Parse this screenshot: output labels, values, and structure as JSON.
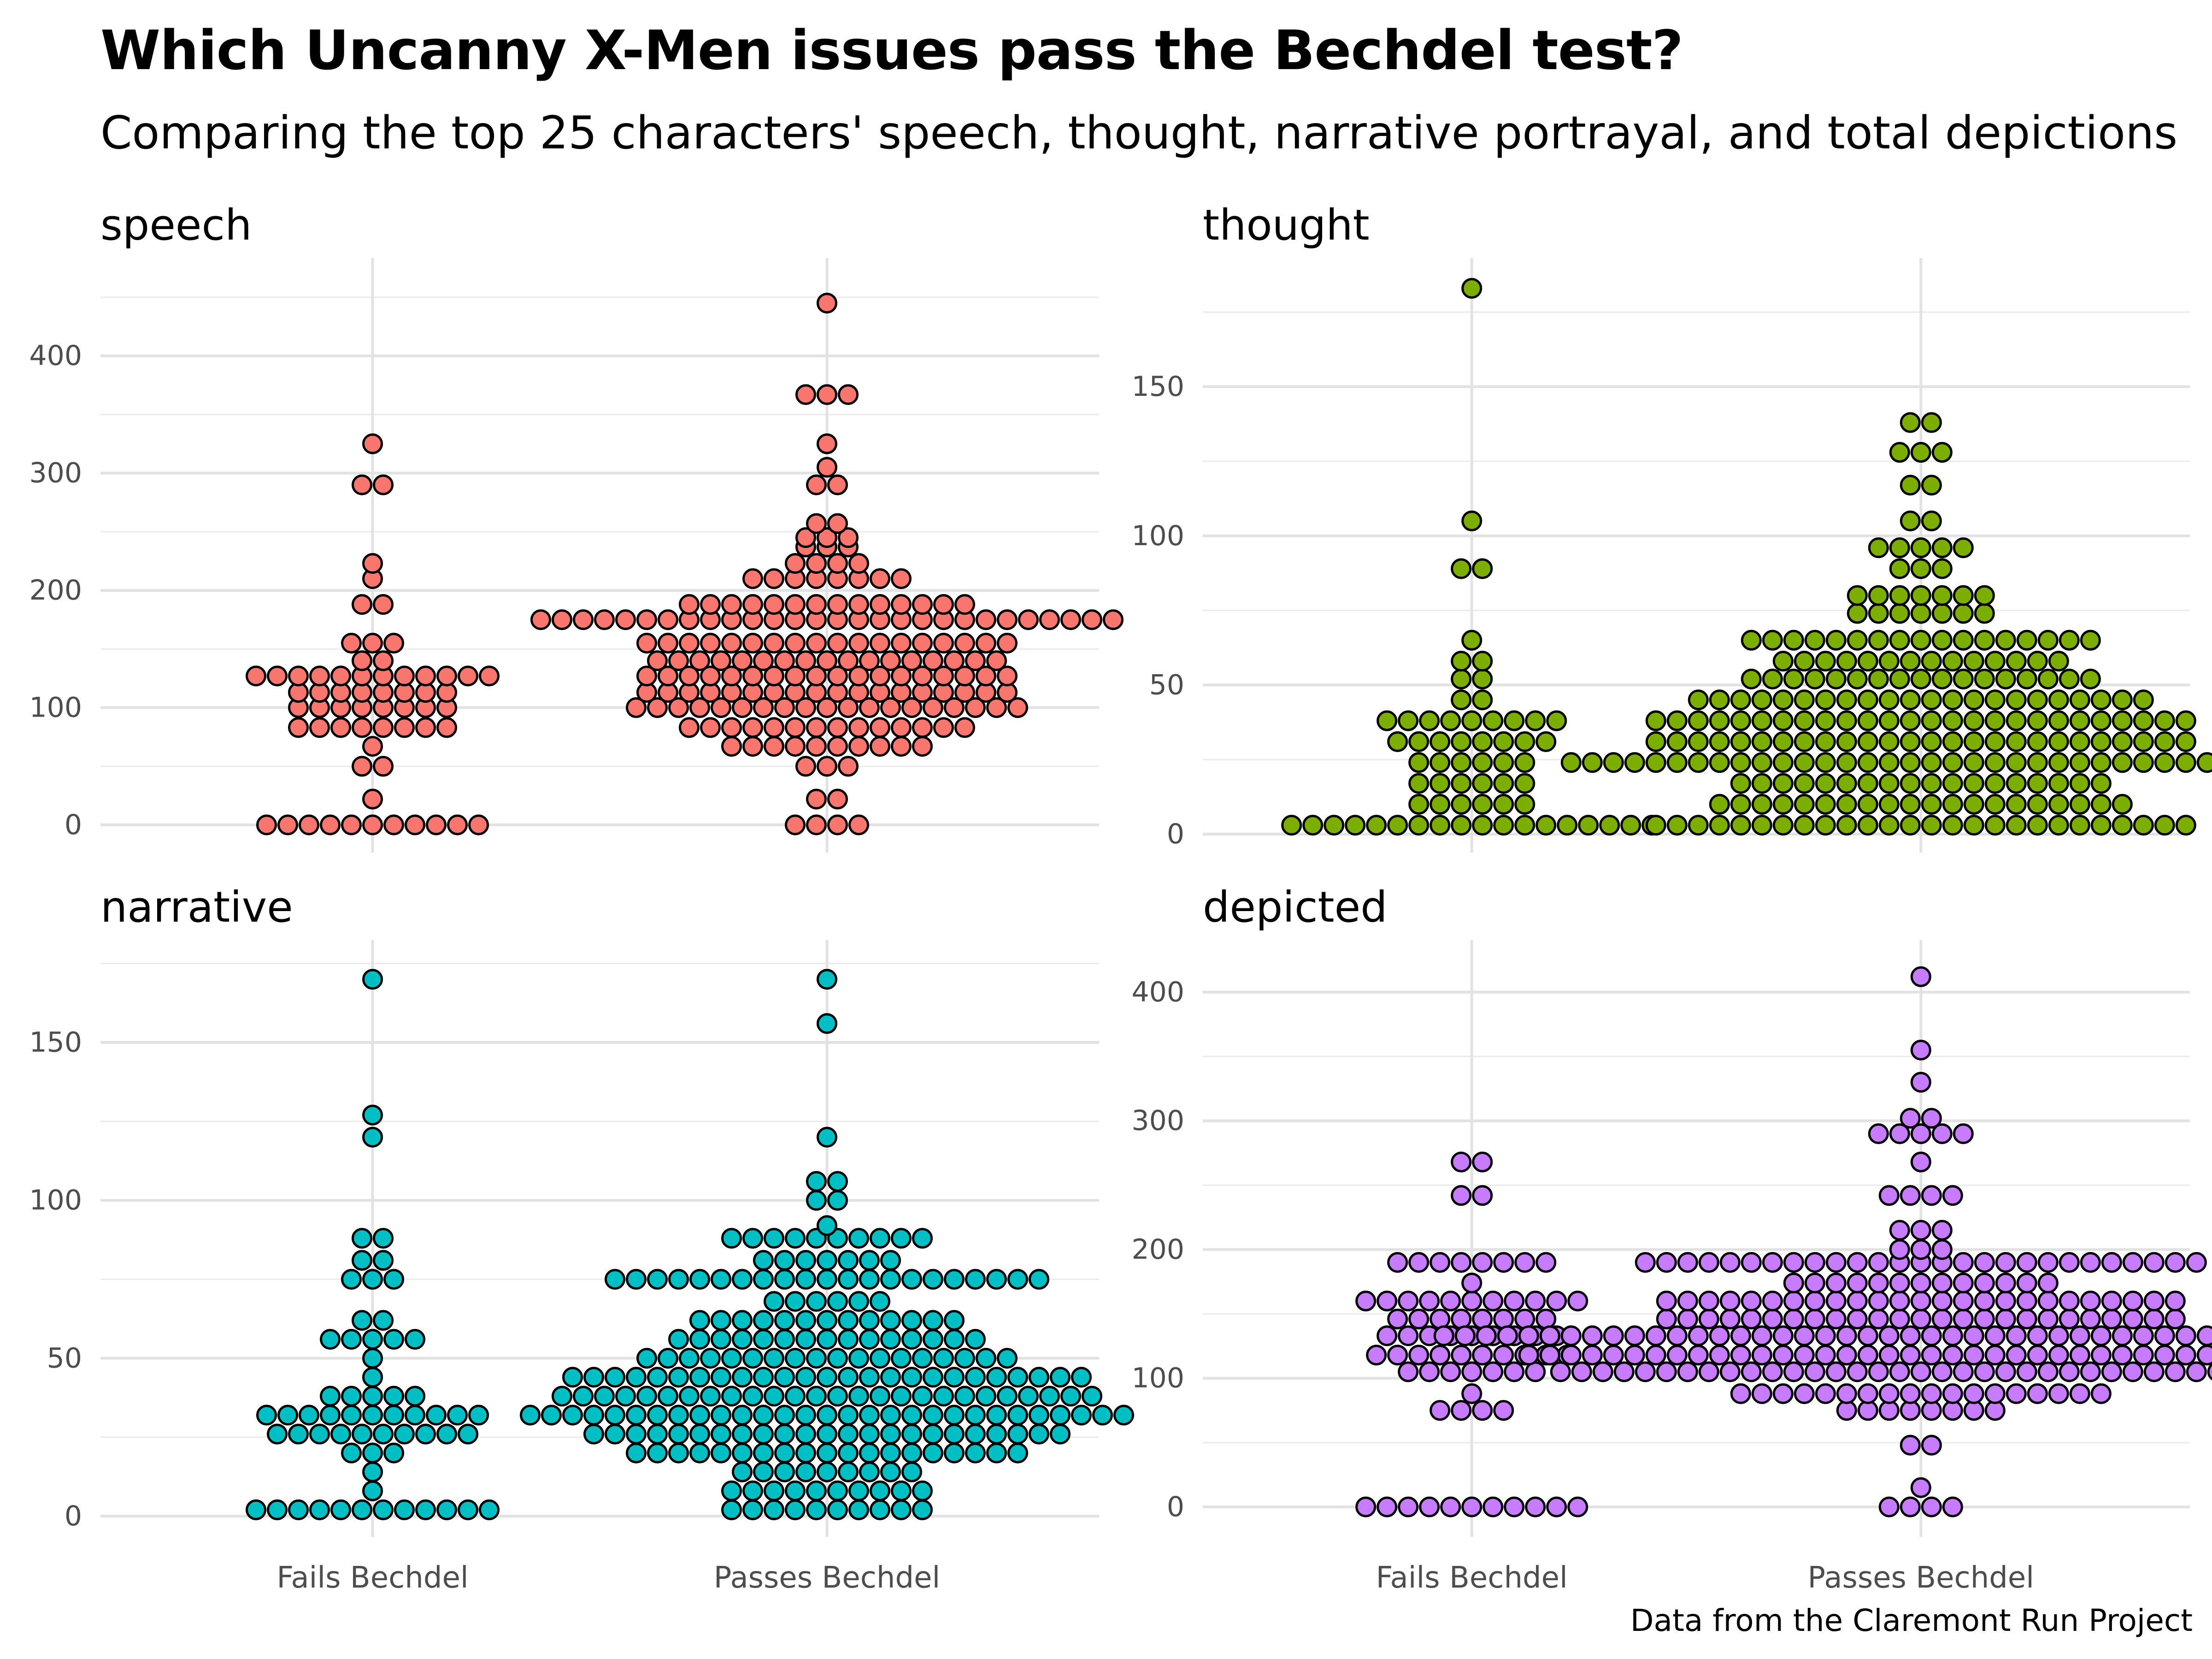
{
  "title": "Which Uncanny X-Men issues pass the Bechdel test?",
  "subtitle": "Comparing the top 25 characters' speech, thought, narrative portrayal, and total depictions",
  "caption": "Data from the Claremont Run Project",
  "chart_data": {
    "type": "scatter",
    "subtype": "beeswarm",
    "grid": true,
    "categories": [
      "Fails Bechdel",
      "Passes Bechdel"
    ],
    "panels": [
      {
        "name": "speech",
        "color": "#F8766D",
        "ylim": [
          0,
          450
        ],
        "yticks": [
          0,
          100,
          200,
          300,
          400
        ],
        "fails": [
          0,
          0,
          0,
          0,
          0,
          0,
          0,
          0,
          0,
          0,
          0,
          22,
          50,
          50,
          67,
          83,
          83,
          83,
          83,
          83,
          83,
          83,
          83,
          100,
          100,
          100,
          100,
          100,
          100,
          100,
          100,
          113,
          113,
          113,
          113,
          113,
          113,
          113,
          113,
          127,
          127,
          127,
          127,
          127,
          127,
          127,
          127,
          127,
          127,
          127,
          127,
          140,
          140,
          155,
          155,
          155,
          188,
          188,
          210,
          223,
          290,
          290,
          325
        ],
        "passes": [
          0,
          0,
          0,
          0,
          22,
          22,
          50,
          50,
          50,
          67,
          67,
          67,
          67,
          67,
          67,
          67,
          67,
          67,
          67,
          83,
          83,
          83,
          83,
          83,
          83,
          83,
          83,
          83,
          83,
          83,
          83,
          83,
          83,
          100,
          100,
          100,
          100,
          100,
          100,
          100,
          100,
          100,
          100,
          100,
          100,
          100,
          100,
          100,
          100,
          100,
          100,
          100,
          113,
          113,
          113,
          113,
          113,
          113,
          113,
          113,
          113,
          113,
          113,
          113,
          113,
          113,
          113,
          113,
          113,
          113,
          127,
          127,
          127,
          127,
          127,
          127,
          127,
          127,
          127,
          127,
          127,
          127,
          127,
          127,
          127,
          127,
          127,
          127,
          140,
          140,
          140,
          140,
          140,
          140,
          140,
          140,
          140,
          140,
          140,
          140,
          140,
          140,
          140,
          140,
          140,
          155,
          155,
          155,
          155,
          155,
          155,
          155,
          155,
          155,
          155,
          155,
          155,
          155,
          155,
          155,
          155,
          155,
          155,
          175,
          175,
          175,
          175,
          175,
          175,
          175,
          175,
          175,
          175,
          175,
          175,
          175,
          175,
          175,
          175,
          175,
          175,
          175,
          175,
          175,
          175,
          175,
          175,
          175,
          175,
          175,
          175,
          188,
          188,
          188,
          188,
          188,
          188,
          188,
          188,
          188,
          188,
          188,
          188,
          188,
          188,
          210,
          210,
          210,
          210,
          210,
          210,
          210,
          210,
          223,
          223,
          223,
          223,
          237,
          237,
          237,
          245,
          245,
          245,
          257,
          257,
          290,
          290,
          305,
          325,
          367,
          367,
          367,
          445
        ]
      },
      {
        "name": "thought",
        "color": "#7CAE00",
        "ylim": [
          0,
          180
        ],
        "yticks": [
          0,
          50,
          100,
          150
        ],
        "fails": [
          3,
          3,
          3,
          3,
          3,
          3,
          3,
          3,
          3,
          3,
          3,
          3,
          3,
          3,
          3,
          3,
          3,
          3,
          10,
          10,
          10,
          10,
          10,
          10,
          17,
          17,
          17,
          17,
          17,
          17,
          24,
          24,
          24,
          24,
          24,
          24,
          31,
          31,
          31,
          31,
          31,
          31,
          31,
          31,
          38,
          38,
          38,
          38,
          38,
          38,
          38,
          38,
          38,
          45,
          45,
          52,
          52,
          58,
          58,
          65,
          89,
          89,
          105,
          183
        ],
        "passes": [
          3,
          3,
          3,
          3,
          3,
          3,
          3,
          3,
          3,
          3,
          3,
          3,
          3,
          3,
          3,
          3,
          3,
          3,
          3,
          3,
          3,
          3,
          3,
          3,
          3,
          3,
          10,
          10,
          10,
          10,
          10,
          10,
          10,
          10,
          10,
          10,
          10,
          10,
          10,
          10,
          10,
          10,
          10,
          10,
          10,
          10,
          17,
          17,
          17,
          17,
          17,
          17,
          17,
          17,
          17,
          17,
          17,
          17,
          17,
          17,
          17,
          17,
          17,
          17,
          24,
          24,
          24,
          24,
          24,
          24,
          24,
          24,
          24,
          24,
          24,
          24,
          24,
          24,
          24,
          24,
          24,
          24,
          24,
          24,
          24,
          24,
          24,
          24,
          24,
          24,
          24,
          24,
          24,
          24,
          24,
          24,
          24,
          24,
          31,
          31,
          31,
          31,
          31,
          31,
          31,
          31,
          31,
          31,
          31,
          31,
          31,
          31,
          31,
          31,
          31,
          31,
          31,
          31,
          31,
          31,
          31,
          31,
          31,
          31,
          38,
          38,
          38,
          38,
          38,
          38,
          38,
          38,
          38,
          38,
          38,
          38,
          38,
          38,
          38,
          38,
          38,
          38,
          38,
          38,
          38,
          38,
          38,
          38,
          38,
          38,
          45,
          45,
          45,
          45,
          45,
          45,
          45,
          45,
          45,
          45,
          45,
          45,
          45,
          45,
          45,
          45,
          45,
          45,
          45,
          45,
          45,
          45,
          52,
          52,
          52,
          52,
          52,
          52,
          52,
          52,
          52,
          52,
          52,
          52,
          52,
          52,
          52,
          52,
          52,
          58,
          58,
          58,
          58,
          58,
          58,
          58,
          58,
          58,
          58,
          58,
          58,
          58,
          58,
          65,
          65,
          65,
          65,
          65,
          65,
          65,
          65,
          65,
          65,
          65,
          65,
          65,
          65,
          65,
          65,
          65,
          74,
          74,
          74,
          74,
          74,
          74,
          74,
          80,
          80,
          80,
          80,
          80,
          80,
          80,
          89,
          89,
          89,
          96,
          96,
          96,
          96,
          96,
          105,
          105,
          117,
          117,
          128,
          128,
          128,
          138,
          138
        ]
      },
      {
        "name": "narrative",
        "color": "#00BFC4",
        "ylim": [
          0,
          170
        ],
        "yticks": [
          0,
          50,
          100,
          150
        ],
        "fails": [
          2,
          2,
          2,
          2,
          2,
          2,
          2,
          2,
          2,
          2,
          2,
          2,
          8,
          14,
          20,
          20,
          20,
          26,
          26,
          26,
          26,
          26,
          26,
          26,
          26,
          26,
          26,
          32,
          32,
          32,
          32,
          32,
          32,
          32,
          32,
          32,
          32,
          32,
          38,
          38,
          38,
          38,
          38,
          44,
          50,
          56,
          56,
          56,
          56,
          56,
          62,
          62,
          75,
          75,
          75,
          81,
          81,
          88,
          88,
          120,
          127,
          170
        ],
        "passes": [
          2,
          2,
          2,
          2,
          2,
          2,
          2,
          2,
          2,
          2,
          8,
          8,
          8,
          8,
          8,
          8,
          8,
          8,
          8,
          8,
          14,
          14,
          14,
          14,
          14,
          14,
          14,
          14,
          14,
          20,
          20,
          20,
          20,
          20,
          20,
          20,
          20,
          20,
          20,
          20,
          20,
          20,
          20,
          20,
          20,
          20,
          20,
          20,
          26,
          26,
          26,
          26,
          26,
          26,
          26,
          26,
          26,
          26,
          26,
          26,
          26,
          26,
          26,
          26,
          26,
          26,
          26,
          26,
          26,
          26,
          26,
          32,
          32,
          32,
          32,
          32,
          32,
          32,
          32,
          32,
          32,
          32,
          32,
          32,
          32,
          32,
          32,
          32,
          32,
          32,
          32,
          32,
          32,
          32,
          32,
          32,
          32,
          32,
          32,
          32,
          38,
          38,
          38,
          38,
          38,
          38,
          38,
          38,
          38,
          38,
          38,
          38,
          38,
          38,
          38,
          38,
          38,
          38,
          38,
          38,
          38,
          38,
          38,
          38,
          38,
          38,
          44,
          44,
          44,
          44,
          44,
          44,
          44,
          44,
          44,
          44,
          44,
          44,
          44,
          44,
          44,
          44,
          44,
          44,
          44,
          44,
          44,
          44,
          44,
          44,
          44,
          50,
          50,
          50,
          50,
          50,
          50,
          50,
          50,
          50,
          50,
          50,
          50,
          50,
          50,
          50,
          50,
          50,
          50,
          56,
          56,
          56,
          56,
          56,
          56,
          56,
          56,
          56,
          56,
          56,
          56,
          56,
          56,
          56,
          62,
          62,
          62,
          62,
          62,
          62,
          62,
          62,
          62,
          62,
          62,
          62,
          62,
          68,
          68,
          68,
          68,
          68,
          68,
          75,
          75,
          75,
          75,
          75,
          75,
          75,
          75,
          75,
          75,
          75,
          75,
          75,
          75,
          75,
          75,
          75,
          75,
          75,
          75,
          75,
          81,
          81,
          81,
          81,
          81,
          81,
          81,
          88,
          88,
          88,
          88,
          88,
          88,
          88,
          88,
          88,
          88,
          92,
          100,
          100,
          106,
          106,
          120,
          156,
          170
        ]
      },
      {
        "name": "depicted",
        "color": "#C77CFF",
        "ylim": [
          0,
          410
        ],
        "yticks": [
          0,
          100,
          200,
          300,
          400
        ],
        "fails": [
          0,
          0,
          0,
          0,
          0,
          0,
          0,
          0,
          0,
          0,
          0,
          75,
          75,
          75,
          75,
          88,
          105,
          105,
          105,
          105,
          105,
          105,
          105,
          118,
          118,
          118,
          118,
          118,
          118,
          118,
          118,
          118,
          118,
          133,
          133,
          133,
          133,
          133,
          133,
          133,
          133,
          133,
          146,
          146,
          146,
          146,
          146,
          146,
          146,
          146,
          160,
          160,
          160,
          160,
          160,
          160,
          160,
          160,
          160,
          160,
          160,
          174,
          190,
          190,
          190,
          190,
          190,
          190,
          190,
          190,
          242,
          242,
          268,
          268
        ],
        "passes": [
          0,
          0,
          0,
          0,
          15,
          48,
          48,
          75,
          75,
          75,
          75,
          75,
          75,
          75,
          75,
          88,
          88,
          88,
          88,
          88,
          88,
          88,
          88,
          88,
          88,
          88,
          88,
          88,
          88,
          88,
          88,
          88,
          88,
          105,
          105,
          105,
          105,
          105,
          105,
          105,
          105,
          105,
          105,
          105,
          105,
          105,
          105,
          105,
          105,
          105,
          105,
          105,
          105,
          105,
          105,
          105,
          105,
          105,
          105,
          105,
          105,
          105,
          105,
          105,
          105,
          105,
          105,
          105,
          118,
          118,
          118,
          118,
          118,
          118,
          118,
          118,
          118,
          118,
          118,
          118,
          118,
          118,
          118,
          118,
          118,
          118,
          118,
          118,
          118,
          118,
          118,
          118,
          118,
          118,
          118,
          118,
          118,
          118,
          118,
          118,
          118,
          118,
          118,
          118,
          118,
          118,
          133,
          133,
          133,
          133,
          133,
          133,
          133,
          133,
          133,
          133,
          133,
          133,
          133,
          133,
          133,
          133,
          133,
          133,
          133,
          133,
          133,
          133,
          133,
          133,
          133,
          133,
          133,
          133,
          133,
          133,
          133,
          133,
          133,
          133,
          133,
          133,
          133,
          133,
          133,
          133,
          133,
          133,
          133,
          133,
          133,
          133,
          146,
          146,
          146,
          146,
          146,
          146,
          146,
          146,
          146,
          146,
          146,
          146,
          146,
          146,
          146,
          146,
          146,
          146,
          146,
          146,
          146,
          146,
          146,
          146,
          146,
          160,
          160,
          160,
          160,
          160,
          160,
          160,
          160,
          160,
          160,
          160,
          160,
          160,
          160,
          160,
          160,
          160,
          160,
          160,
          160,
          160,
          160,
          160,
          160,
          160,
          174,
          174,
          174,
          174,
          174,
          174,
          174,
          174,
          174,
          174,
          174,
          174,
          174,
          190,
          190,
          190,
          190,
          190,
          190,
          190,
          190,
          190,
          190,
          190,
          190,
          190,
          190,
          190,
          190,
          190,
          190,
          190,
          190,
          190,
          190,
          190,
          190,
          190,
          190,
          190,
          200,
          200,
          200,
          215,
          215,
          215,
          242,
          242,
          242,
          242,
          268,
          290,
          290,
          290,
          290,
          290,
          302,
          302,
          330,
          355,
          412
        ]
      }
    ]
  }
}
